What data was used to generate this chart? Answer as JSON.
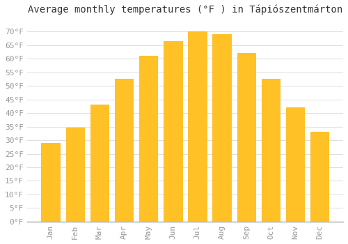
{
  "title": "Average monthly temperatures (°F ) in Tápiószentmárton",
  "months": [
    "Jan",
    "Feb",
    "Mar",
    "Apr",
    "May",
    "Jun",
    "Jul",
    "Aug",
    "Sep",
    "Oct",
    "Nov",
    "Dec"
  ],
  "values": [
    29,
    34.5,
    43,
    52.5,
    61,
    66.5,
    70,
    69,
    62,
    52.5,
    42,
    33
  ],
  "bar_color": "#FFC125",
  "bar_edge_color": "#FFB300",
  "background_color": "#FFFFFF",
  "grid_color": "#DDDDDD",
  "yticks": [
    0,
    5,
    10,
    15,
    20,
    25,
    30,
    35,
    40,
    45,
    50,
    55,
    60,
    65,
    70
  ],
  "ylim": [
    0,
    74
  ],
  "title_fontsize": 10,
  "tick_fontsize": 8,
  "font_family": "monospace"
}
